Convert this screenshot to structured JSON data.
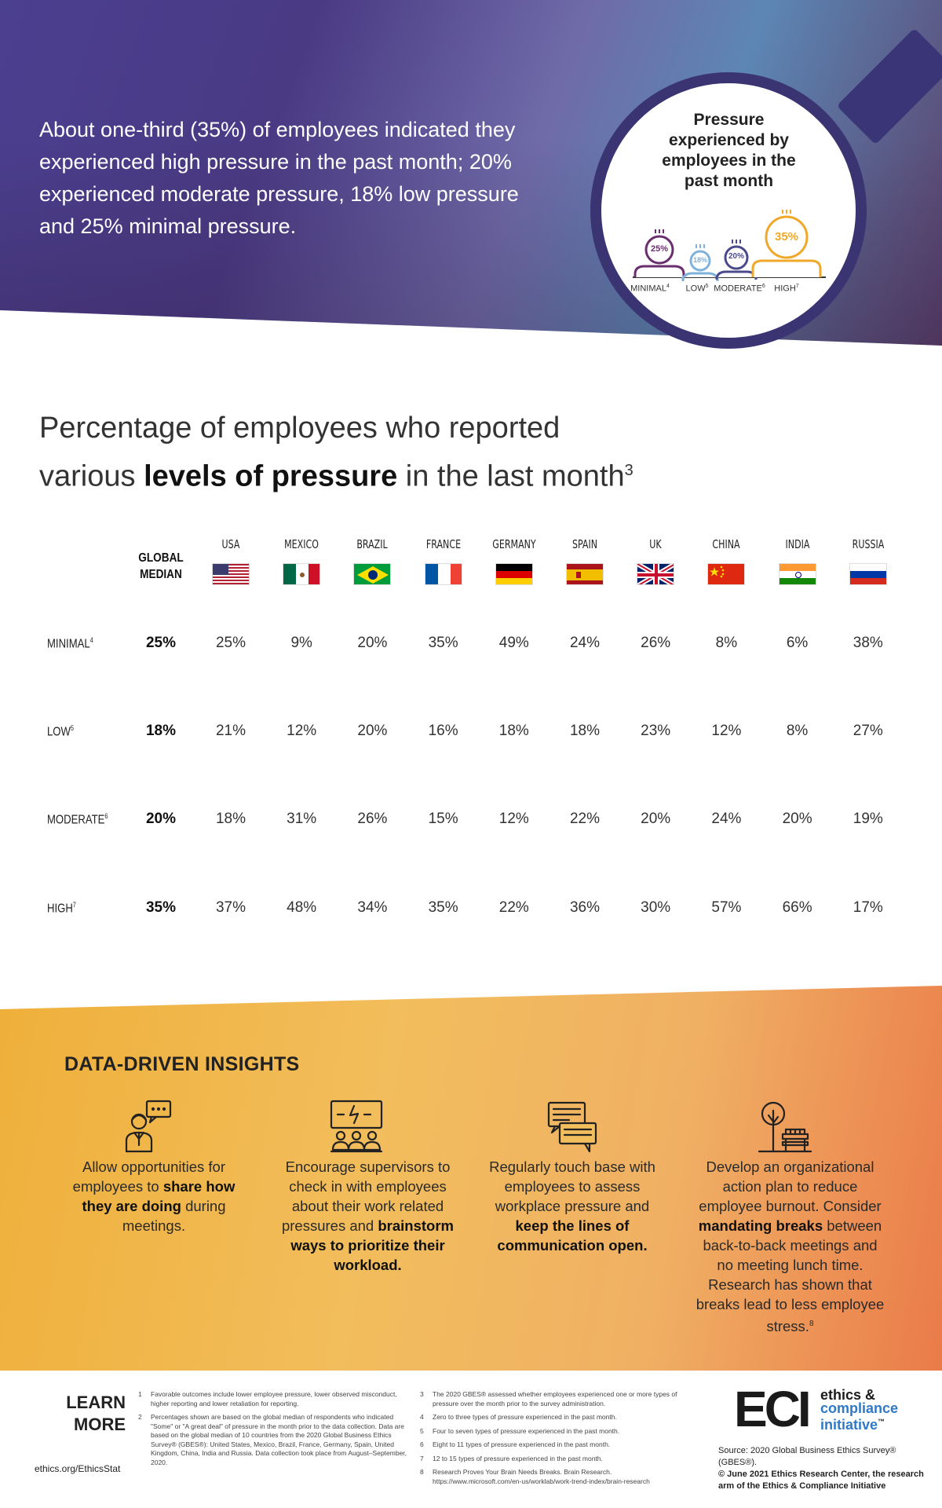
{
  "header": {
    "intro": "About one-third (35%) of employees indicated they experienced high pressure in the past month; 20% experienced moderate pressure, 18% low pressure and 25% minimal pressure.",
    "circle_title": "Pressure experienced by employees in the past month",
    "figures": [
      {
        "label": "MINIMAL",
        "sup": "4",
        "pct": "25%",
        "color": "#6a2e6e"
      },
      {
        "label": "LOW",
        "sup": "5",
        "pct": "18%",
        "color": "#7fb2db"
      },
      {
        "label": "MODERATE",
        "sup": "6",
        "pct": "20%",
        "color": "#4a4a8c"
      },
      {
        "label": "HIGH",
        "sup": "7",
        "pct": "35%",
        "color": "#f0a82a"
      }
    ]
  },
  "title": {
    "line1": "Percentage of employees who reported",
    "pre": "various ",
    "bold": "levels of pressure",
    "post": " in the last month",
    "sup": "3"
  },
  "table": {
    "global_head": "GLOBAL MEDIAN",
    "countries": [
      "USA",
      "MEXICO",
      "BRAZIL",
      "FRANCE",
      "GERMANY",
      "SPAIN",
      "UK",
      "CHINA",
      "INDIA",
      "RUSSIA"
    ],
    "rows": [
      {
        "label": "MINIMAL",
        "sup": "4",
        "global": "25%",
        "values": [
          "25%",
          "9%",
          "20%",
          "35%",
          "49%",
          "24%",
          "26%",
          "8%",
          "6%",
          "38%"
        ]
      },
      {
        "label": "LOW",
        "sup": "5",
        "global": "18%",
        "values": [
          "21%",
          "12%",
          "20%",
          "16%",
          "18%",
          "18%",
          "23%",
          "12%",
          "8%",
          "27%"
        ]
      },
      {
        "label": "MODERATE",
        "sup": "6",
        "global": "20%",
        "values": [
          "18%",
          "31%",
          "26%",
          "15%",
          "12%",
          "22%",
          "20%",
          "24%",
          "20%",
          "19%"
        ]
      },
      {
        "label": "HIGH",
        "sup": "7",
        "global": "35%",
        "values": [
          "37%",
          "48%",
          "34%",
          "35%",
          "22%",
          "36%",
          "30%",
          "57%",
          "66%",
          "17%"
        ]
      }
    ]
  },
  "insights": {
    "title": "DATA-DRIVEN INSIGHTS",
    "items": [
      {
        "icon": "speaking-person-icon",
        "parts": [
          "Allow opportunities for employees to ",
          "share how they are doing",
          " during meetings."
        ]
      },
      {
        "icon": "team-meeting-icon",
        "parts": [
          "Encourage supervisors to check in with employees about their work related pressures and ",
          "brainstorm ways to prioritize their workload.",
          ""
        ]
      },
      {
        "icon": "chat-messages-icon",
        "parts": [
          "Regularly touch base with employees to assess workplace pressure and ",
          "keep the lines of communication open.",
          ""
        ]
      },
      {
        "icon": "park-bench-icon",
        "parts": [
          "Develop an organizational action plan to reduce employee burnout. Consider ",
          "mandating breaks",
          " between back-to-back meetings and no meeting lunch time. Research has shown that breaks lead to less employee stress."
        ],
        "sup": "8"
      }
    ]
  },
  "footer": {
    "learn": "LEARN MORE",
    "url": "ethics.org/EthicsStat",
    "footnotes_left": [
      {
        "n": "1",
        "text": "Favorable outcomes include lower employee pressure, lower observed misconduct, higher reporting and lower retaliation for reporting."
      },
      {
        "n": "2",
        "text": "Percentages shown are based on the global median of respondents who indicated \"Some\" or \"A great deal\" of pressure in the month prior to the data collection. Data are based on the global median of 10 countries from the 2020 Global Business Ethics Survey® (GBES®): United States, Mexico, Brazil, France, Germany, Spain, United Kingdom, China, India and Russia. Data collection took place from August–September, 2020."
      }
    ],
    "footnotes_right": [
      {
        "n": "3",
        "text": "The 2020 GBES® assessed whether employees experienced one or more types of pressure over the month prior to the survey administration."
      },
      {
        "n": "4",
        "text": "Zero to three types of pressure experienced in the past month."
      },
      {
        "n": "5",
        "text": "Four to seven types of pressure experienced in the past month."
      },
      {
        "n": "6",
        "text": "Eight to 11 types of pressure experienced in the past month."
      },
      {
        "n": "7",
        "text": "12 to 15 types of pressure experienced in the past month."
      },
      {
        "n": "8",
        "text": "Research Proves Your Brain Needs Breaks. Brain Research. https://www.microsoft.com/en-us/worklab/work-trend-index/brain-research"
      }
    ],
    "logo_letters": "ECI",
    "logo_line1": "ethics &",
    "logo_line2": "compliance",
    "logo_line3": "initiative",
    "logo_tm": "™",
    "source_line": "Source: 2020 Global Business Ethics Survey® (GBES®).",
    "copyright": "© June 2021 Ethics Research Center, the research arm of the Ethics & Compliance Initiative"
  }
}
